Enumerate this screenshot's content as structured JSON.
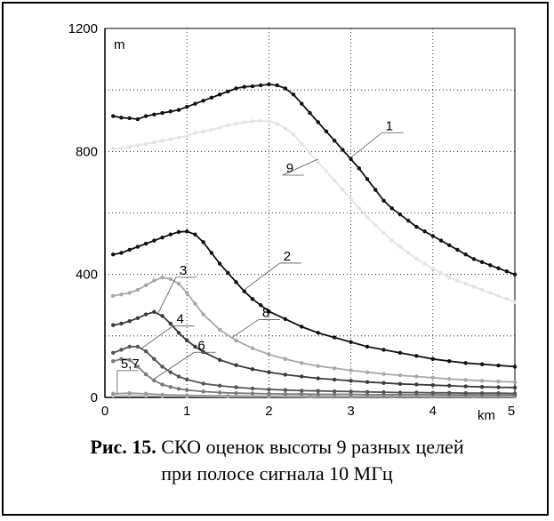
{
  "caption": {
    "label": "Рис. 15.",
    "line1": "СКО оценок высоты 9 разных целей",
    "line2": "при полосе сигнала 10 МГц"
  },
  "chart_data": {
    "type": "line",
    "xlabel": "km",
    "ylabel": "m",
    "xlim": [
      0,
      5
    ],
    "ylim": [
      0,
      1200
    ],
    "xticks": [
      "0",
      "1",
      "2",
      "3",
      "4",
      "5"
    ],
    "yticks": [
      "0",
      "400",
      "800",
      "1200"
    ],
    "grid": true,
    "series": [
      {
        "name": "1",
        "color": "#111111",
        "x": [
          0.1,
          0.2,
          0.3,
          0.4,
          0.5,
          0.6,
          0.7,
          0.8,
          0.9,
          1.0,
          1.1,
          1.2,
          1.3,
          1.4,
          1.5,
          1.6,
          1.7,
          1.8,
          1.9,
          2.0,
          2.1,
          2.2,
          2.3,
          2.4,
          2.5,
          2.6,
          2.7,
          2.8,
          2.9,
          3.0,
          3.1,
          3.2,
          3.3,
          3.4,
          3.5,
          3.6,
          3.7,
          3.8,
          3.9,
          4.0,
          4.1,
          4.2,
          4.3,
          4.4,
          4.5,
          4.6,
          4.7,
          4.8,
          4.9,
          5.0
        ],
        "y": [
          915,
          910,
          908,
          905,
          915,
          920,
          925,
          930,
          935,
          945,
          955,
          965,
          975,
          985,
          995,
          1005,
          1010,
          1012,
          1015,
          1018,
          1015,
          1005,
          985,
          955,
          925,
          895,
          865,
          835,
          805,
          775,
          745,
          710,
          675,
          640,
          615,
          595,
          575,
          555,
          540,
          525,
          510,
          495,
          480,
          465,
          450,
          440,
          430,
          420,
          410,
          400
        ]
      },
      {
        "name": "9",
        "color": "#e4e4e4",
        "x": [
          0.1,
          0.2,
          0.3,
          0.4,
          0.5,
          0.6,
          0.7,
          0.8,
          0.9,
          1.0,
          1.1,
          1.2,
          1.3,
          1.4,
          1.5,
          1.6,
          1.7,
          1.8,
          1.9,
          2.0,
          2.1,
          2.2,
          2.3,
          2.4,
          2.5,
          2.6,
          2.7,
          2.8,
          2.9,
          3.0,
          3.1,
          3.2,
          3.3,
          3.4,
          3.5,
          3.6,
          3.7,
          3.8,
          3.9,
          4.0,
          4.1,
          4.2,
          4.3,
          4.4,
          4.5,
          4.6,
          4.7,
          4.8,
          4.9,
          5.0
        ],
        "y": [
          810,
          810,
          815,
          820,
          825,
          830,
          835,
          840,
          845,
          850,
          860,
          865,
          870,
          878,
          885,
          890,
          895,
          898,
          900,
          898,
          890,
          875,
          855,
          825,
          795,
          765,
          735,
          705,
          675,
          645,
          615,
          585,
          560,
          535,
          510,
          490,
          470,
          450,
          435,
          420,
          405,
          390,
          380,
          370,
          360,
          350,
          340,
          330,
          320,
          310
        ]
      },
      {
        "name": "2",
        "color": "#111111",
        "x": [
          0.1,
          0.2,
          0.3,
          0.4,
          0.5,
          0.6,
          0.7,
          0.8,
          0.9,
          1.0,
          1.1,
          1.2,
          1.3,
          1.4,
          1.5,
          1.6,
          1.7,
          1.8,
          1.9,
          2.0,
          2.2,
          2.4,
          2.6,
          2.8,
          3.0,
          3.2,
          3.4,
          3.6,
          3.8,
          4.0,
          4.2,
          4.4,
          4.6,
          4.8,
          5.0
        ],
        "y": [
          465,
          470,
          480,
          490,
          500,
          510,
          520,
          530,
          538,
          540,
          530,
          505,
          470,
          435,
          405,
          375,
          345,
          320,
          300,
          280,
          255,
          230,
          210,
          195,
          180,
          165,
          155,
          145,
          135,
          125,
          118,
          112,
          108,
          104,
          100
        ]
      },
      {
        "name": "8",
        "color": "#a8a8a8",
        "x": [
          0.1,
          0.2,
          0.3,
          0.4,
          0.5,
          0.6,
          0.7,
          0.8,
          0.9,
          1.0,
          1.1,
          1.2,
          1.4,
          1.6,
          1.8,
          2.0,
          2.2,
          2.4,
          2.6,
          2.8,
          3.0,
          3.2,
          3.4,
          3.6,
          3.8,
          4.0,
          4.2,
          4.4,
          4.6,
          4.8,
          5.0
        ],
        "y": [
          330,
          335,
          340,
          350,
          365,
          380,
          390,
          385,
          370,
          340,
          305,
          270,
          220,
          185,
          160,
          140,
          125,
          112,
          102,
          95,
          88,
          82,
          76,
          72,
          68,
          64,
          60,
          57,
          54,
          52,
          50
        ]
      },
      {
        "name": "3",
        "color": "#3a3a3a",
        "x": [
          0.1,
          0.2,
          0.3,
          0.4,
          0.5,
          0.6,
          0.7,
          0.8,
          0.9,
          1.0,
          1.1,
          1.2,
          1.4,
          1.6,
          1.8,
          2.0,
          2.2,
          2.4,
          2.6,
          2.8,
          3.0,
          3.2,
          3.4,
          3.6,
          3.8,
          4.0,
          4.2,
          4.4,
          4.6,
          4.8,
          5.0
        ],
        "y": [
          235,
          240,
          248,
          258,
          270,
          278,
          265,
          240,
          210,
          185,
          165,
          148,
          122,
          105,
          92,
          82,
          74,
          68,
          62,
          58,
          54,
          50,
          47,
          44,
          42,
          40,
          38,
          36,
          34,
          33,
          32
        ]
      },
      {
        "name": "4",
        "color": "#555555",
        "x": [
          0.1,
          0.2,
          0.3,
          0.4,
          0.5,
          0.6,
          0.7,
          0.8,
          0.9,
          1.0,
          1.2,
          1.4,
          1.6,
          1.8,
          2.0,
          2.2,
          2.4,
          2.6,
          2.8,
          3.0,
          3.2,
          3.4,
          3.6,
          3.8,
          4.0,
          4.2,
          4.4,
          4.6,
          4.8,
          5.0
        ],
        "y": [
          145,
          155,
          165,
          165,
          150,
          125,
          100,
          82,
          68,
          58,
          45,
          38,
          33,
          29,
          26,
          24,
          22,
          21,
          20,
          19,
          18,
          17,
          16,
          16,
          15,
          15,
          14,
          14,
          14,
          13
        ]
      },
      {
        "name": "6",
        "color": "#7a7a7a",
        "x": [
          0.1,
          0.2,
          0.3,
          0.4,
          0.5,
          0.6,
          0.7,
          0.8,
          0.9,
          1.0,
          1.2,
          1.4,
          1.6,
          1.8,
          2.0,
          2.2,
          2.4,
          2.6,
          2.8,
          3.0,
          3.2,
          3.4,
          3.6,
          3.8,
          4.0,
          4.2,
          4.4,
          4.6,
          4.8,
          5.0
        ],
        "y": [
          118,
          125,
          122,
          100,
          75,
          55,
          42,
          34,
          28,
          24,
          19,
          16,
          14,
          13,
          12,
          11,
          11,
          10,
          10,
          10,
          9,
          9,
          9,
          9,
          9,
          8,
          8,
          8,
          8,
          8
        ]
      },
      {
        "name": "5",
        "color": "#999999",
        "x": [
          0.1,
          0.3,
          0.5,
          0.7,
          1.0,
          1.5,
          2.0,
          2.5,
          3.0,
          3.5,
          4.0,
          4.5,
          5.0
        ],
        "y": [
          12,
          14,
          12,
          9,
          7,
          5,
          4,
          4,
          3,
          3,
          3,
          3,
          3
        ]
      },
      {
        "name": "7",
        "color": "#c8c8c8",
        "x": [
          0.1,
          0.3,
          0.5,
          0.7,
          1.0,
          1.5,
          2.0,
          2.5,
          3.0,
          3.5,
          4.0,
          4.5,
          5.0
        ],
        "y": [
          6,
          7,
          6,
          5,
          4,
          3,
          3,
          2,
          2,
          2,
          2,
          2,
          2
        ]
      }
    ],
    "annotations": [
      {
        "text": "1",
        "series": "1",
        "x": 3.0,
        "y": 780
      },
      {
        "text": "9",
        "series": "9",
        "x": 2.6,
        "y": 775
      },
      {
        "text": "2",
        "series": "2",
        "x": 1.7,
        "y": 350
      },
      {
        "text": "8",
        "series": "8",
        "x": 1.55,
        "y": 195
      },
      {
        "text": "3",
        "series": "3",
        "x": 0.65,
        "y": 275
      },
      {
        "text": "4",
        "series": "4",
        "x": 0.45,
        "y": 160
      },
      {
        "text": "6",
        "series": "6",
        "x": 0.6,
        "y": 60
      },
      {
        "text": "5,7",
        "series": "5",
        "x": 0.15,
        "y": 12
      }
    ]
  }
}
